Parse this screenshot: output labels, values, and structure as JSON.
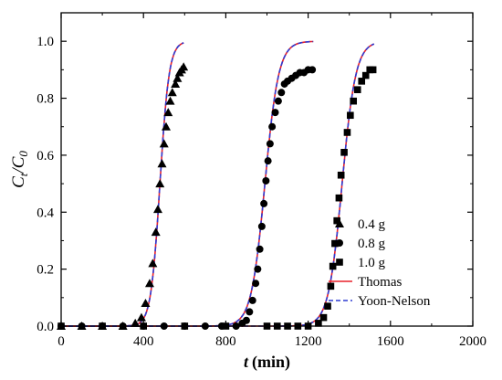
{
  "chart_data": {
    "type": "scatter",
    "xlabel": "t (min)",
    "xlabel_italic": "t",
    "xlabel_unit": "(min)",
    "ylabel": "Ct/C0",
    "xlim": [
      0,
      2000
    ],
    "ylim": [
      0,
      1.1
    ],
    "x_ticks": [
      0,
      400,
      800,
      1200,
      1600,
      2000
    ],
    "y_ticks": [
      0.0,
      0.2,
      0.4,
      0.6,
      0.8,
      1.0
    ],
    "x_tick_labels": [
      "0",
      "400",
      "800",
      "1200",
      "1600",
      "2000"
    ],
    "y_tick_labels": [
      "0.0",
      "0.2",
      "0.4",
      "0.6",
      "0.8",
      "1.0"
    ],
    "grid": false,
    "legend_position": "bottom-right",
    "series": [
      {
        "name": "0.4 g",
        "marker": "triangle",
        "points": [
          [
            0,
            0.0
          ],
          [
            100,
            0.0
          ],
          [
            200,
            0.0
          ],
          [
            300,
            0.0
          ],
          [
            360,
            0.01
          ],
          [
            390,
            0.03
          ],
          [
            410,
            0.08
          ],
          [
            430,
            0.15
          ],
          [
            445,
            0.22
          ],
          [
            460,
            0.33
          ],
          [
            470,
            0.41
          ],
          [
            480,
            0.5
          ],
          [
            490,
            0.57
          ],
          [
            500,
            0.64
          ],
          [
            510,
            0.7
          ],
          [
            520,
            0.75
          ],
          [
            530,
            0.79
          ],
          [
            540,
            0.82
          ],
          [
            555,
            0.85
          ],
          [
            565,
            0.87
          ],
          [
            575,
            0.89
          ],
          [
            585,
            0.9
          ],
          [
            595,
            0.91
          ]
        ]
      },
      {
        "name": "0.8 g",
        "marker": "circle",
        "points": [
          [
            0,
            0.0
          ],
          [
            100,
            0.0
          ],
          [
            200,
            0.0
          ],
          [
            300,
            0.0
          ],
          [
            400,
            0.0
          ],
          [
            500,
            0.0
          ],
          [
            600,
            0.0
          ],
          [
            700,
            0.0
          ],
          [
            780,
            0.0
          ],
          [
            850,
            0.0
          ],
          [
            880,
            0.01
          ],
          [
            900,
            0.02
          ],
          [
            915,
            0.05
          ],
          [
            930,
            0.09
          ],
          [
            945,
            0.15
          ],
          [
            955,
            0.2
          ],
          [
            965,
            0.27
          ],
          [
            975,
            0.35
          ],
          [
            985,
            0.43
          ],
          [
            995,
            0.51
          ],
          [
            1005,
            0.58
          ],
          [
            1015,
            0.64
          ],
          [
            1025,
            0.7
          ],
          [
            1040,
            0.75
          ],
          [
            1055,
            0.79
          ],
          [
            1070,
            0.82
          ],
          [
            1085,
            0.85
          ],
          [
            1100,
            0.86
          ],
          [
            1120,
            0.87
          ],
          [
            1140,
            0.88
          ],
          [
            1160,
            0.89
          ],
          [
            1180,
            0.89
          ],
          [
            1200,
            0.9
          ],
          [
            1220,
            0.9
          ]
        ]
      },
      {
        "name": "1.0 g",
        "marker": "square",
        "points": [
          [
            0,
            0.0
          ],
          [
            200,
            0.0
          ],
          [
            400,
            0.0
          ],
          [
            600,
            0.0
          ],
          [
            800,
            0.0
          ],
          [
            1000,
            0.0
          ],
          [
            1050,
            0.0
          ],
          [
            1100,
            0.0
          ],
          [
            1150,
            0.0
          ],
          [
            1200,
            0.0
          ],
          [
            1250,
            0.01
          ],
          [
            1275,
            0.03
          ],
          [
            1295,
            0.07
          ],
          [
            1310,
            0.14
          ],
          [
            1320,
            0.21
          ],
          [
            1330,
            0.29
          ],
          [
            1340,
            0.37
          ],
          [
            1350,
            0.45
          ],
          [
            1360,
            0.53
          ],
          [
            1375,
            0.61
          ],
          [
            1390,
            0.68
          ],
          [
            1405,
            0.74
          ],
          [
            1420,
            0.79
          ],
          [
            1440,
            0.83
          ],
          [
            1460,
            0.86
          ],
          [
            1480,
            0.88
          ],
          [
            1500,
            0.9
          ],
          [
            1515,
            0.9
          ]
        ]
      }
    ],
    "fit_lines": [
      {
        "name": "Thomas",
        "color": "#e8202a",
        "style": "solid",
        "curves": [
          {
            "k": 0.045,
            "x0": 480,
            "xmin": 0,
            "xmax": 595
          },
          {
            "k": 0.03,
            "x0": 990,
            "xmin": 0,
            "xmax": 1225
          },
          {
            "k": 0.03,
            "x0": 1365,
            "xmin": 0,
            "xmax": 1520
          }
        ]
      },
      {
        "name": "Yoon-Nelson",
        "color": "#2f3cd2",
        "style": "dashed",
        "curves": [
          {
            "k": 0.045,
            "x0": 480,
            "xmin": 0,
            "xmax": 595
          },
          {
            "k": 0.03,
            "x0": 990,
            "xmin": 0,
            "xmax": 1225
          },
          {
            "k": 0.03,
            "x0": 1365,
            "xmin": 0,
            "xmax": 1520
          }
        ]
      }
    ]
  }
}
